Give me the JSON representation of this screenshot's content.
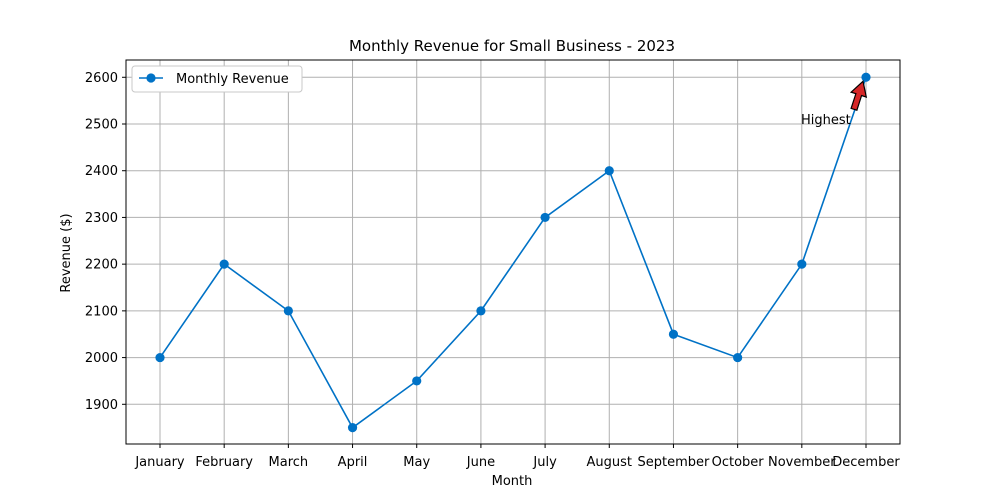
{
  "chart_data": {
    "type": "line",
    "title": "Monthly Revenue for Small Business - 2023",
    "xlabel": "Month",
    "ylabel": "Revenue ($)",
    "categories": [
      "January",
      "February",
      "March",
      "April",
      "May",
      "June",
      "July",
      "August",
      "September",
      "October",
      "November",
      "December"
    ],
    "series": [
      {
        "name": "Monthly Revenue",
        "values": [
          2000,
          2200,
          2100,
          1850,
          1950,
          2100,
          2300,
          2400,
          2050,
          2000,
          2200,
          2600
        ],
        "color": "#0072C6",
        "marker": "circle"
      }
    ],
    "ylim": [
      1815,
      2637
    ],
    "yticks": [
      1900,
      2000,
      2100,
      2200,
      2300,
      2400,
      2500,
      2600
    ],
    "grid": true,
    "legend_position": "upper left",
    "annotation": {
      "text": "Highest",
      "category": "December",
      "value": 2600,
      "arrow_color": "#D62728"
    }
  }
}
